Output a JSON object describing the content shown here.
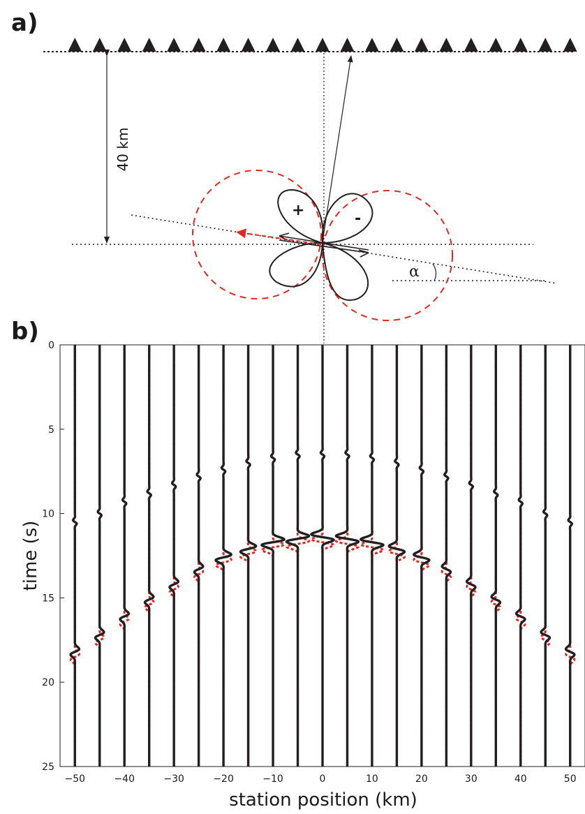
{
  "panel_a": {
    "label": "a)",
    "depth_label": "40 km",
    "plus_sign": "+",
    "minus_sign": "-",
    "angle_label": "α"
  },
  "panel_b": {
    "label": "b)"
  },
  "colors": {
    "trace": "#231f20",
    "secondary": "#e8251f",
    "guide": "#231f20"
  },
  "chart_data": {
    "type": "line",
    "title": "",
    "xlabel": "station position (km)",
    "ylabel": "time (s)",
    "xlim": [
      -53,
      53
    ],
    "ylim": [
      25,
      0
    ],
    "xticks": [
      -50,
      -40,
      -30,
      -20,
      -10,
      0,
      10,
      20,
      30,
      40,
      50
    ],
    "yticks": [
      0,
      5,
      10,
      15,
      20,
      25
    ],
    "y_inverted": true,
    "stations": [
      -50,
      -45,
      -40,
      -35,
      -30,
      -25,
      -20,
      -15,
      -10,
      -5,
      0,
      5,
      10,
      15,
      20,
      25,
      30,
      35,
      40,
      45,
      50
    ],
    "series": [
      {
        "color": "black",
        "first_arrival": [
          10.5,
          10.0,
          9.3,
          8.8,
          8.3,
          7.8,
          7.4,
          7.0,
          6.7,
          6.5,
          6.5,
          6.5,
          6.7,
          7.0,
          7.4,
          7.8,
          8.3,
          8.8,
          9.3,
          10.0,
          10.5
        ],
        "second_arrival": [
          18.2,
          17.2,
          16.1,
          15.1,
          14.2,
          13.3,
          12.6,
          12.1,
          11.7,
          11.5,
          11.4,
          11.5,
          11.7,
          12.1,
          12.6,
          13.3,
          14.2,
          15.1,
          16.1,
          17.2,
          18.2
        ]
      },
      {
        "color": "red",
        "dashed": true,
        "second_arrival_offset": 0.3
      }
    ],
    "geometry": {
      "source_depth_km": 40,
      "receiver_count": 21
    }
  }
}
